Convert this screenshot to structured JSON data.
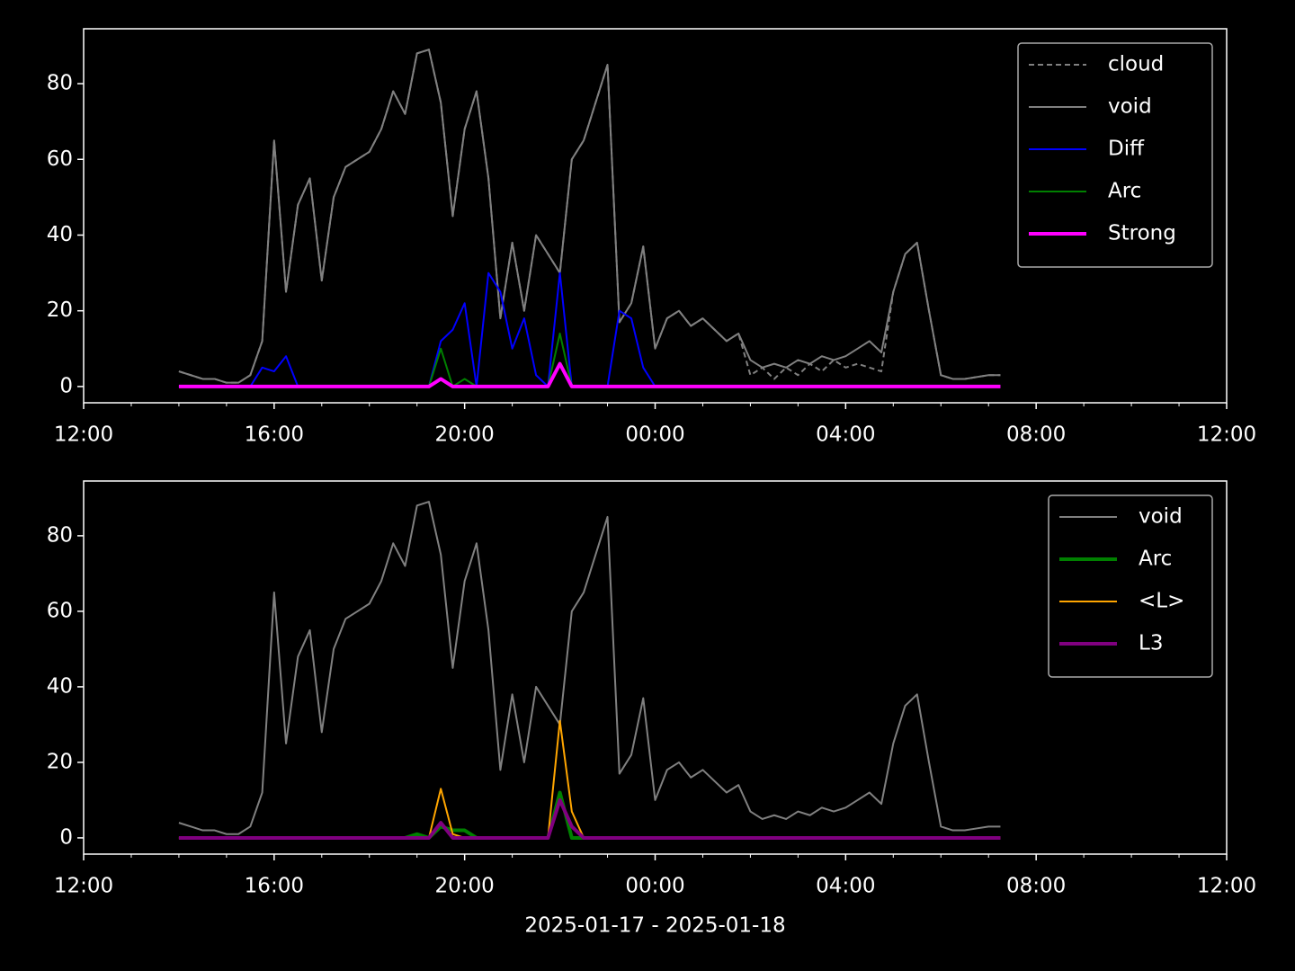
{
  "chart_data": [
    {
      "type": "line",
      "legend": "upper right",
      "x": [
        14,
        14.25,
        14.5,
        14.75,
        15,
        15.25,
        15.5,
        15.75,
        16,
        16.25,
        16.5,
        16.75,
        17,
        17.25,
        17.5,
        17.75,
        18,
        18.25,
        18.5,
        18.75,
        19,
        19.25,
        19.5,
        19.75,
        20,
        20.25,
        20.5,
        20.75,
        21,
        21.25,
        21.5,
        21.75,
        22,
        22.25,
        22.5,
        22.75,
        23,
        23.25,
        23.5,
        23.75,
        24,
        24.25,
        24.5,
        24.75,
        25,
        25.25,
        25.5,
        25.75,
        26,
        26.25,
        26.5,
        26.75,
        27,
        27.25,
        27.5,
        27.75,
        28,
        28.25,
        28.5,
        28.75,
        29,
        29.25,
        29.5,
        29.75,
        30,
        30.25,
        30.5,
        30.75,
        31,
        31.25
      ],
      "series": [
        {
          "name": "cloud",
          "color": "#808080",
          "linestyle": "dashed",
          "width": 2,
          "values": [
            4,
            3,
            2,
            2,
            1,
            1,
            3,
            12,
            65,
            25,
            48,
            55,
            28,
            50,
            58,
            60,
            62,
            68,
            78,
            72,
            88,
            89,
            75,
            45,
            68,
            78,
            55,
            18,
            38,
            20,
            40,
            35,
            30,
            60,
            65,
            75,
            85,
            17,
            22,
            37,
            10,
            18,
            20,
            16,
            18,
            15,
            12,
            14,
            3,
            5,
            2,
            5,
            3,
            6,
            4,
            7,
            5,
            6,
            5,
            4,
            25,
            35,
            38,
            20,
            3,
            2,
            2,
            2.5,
            3,
            3
          ]
        },
        {
          "name": "void",
          "color": "#808080",
          "linestyle": "solid",
          "width": 2,
          "values": [
            4,
            3,
            2,
            2,
            1,
            1,
            3,
            12,
            65,
            25,
            48,
            55,
            28,
            50,
            58,
            60,
            62,
            68,
            78,
            72,
            88,
            89,
            75,
            45,
            68,
            78,
            55,
            18,
            38,
            20,
            40,
            35,
            30,
            60,
            65,
            75,
            85,
            17,
            22,
            37,
            10,
            18,
            20,
            16,
            18,
            15,
            12,
            14,
            7,
            5,
            6,
            5,
            7,
            6,
            8,
            7,
            8,
            10,
            12,
            9,
            25,
            35,
            38,
            20,
            3,
            2,
            2,
            2.5,
            3,
            3
          ]
        },
        {
          "name": "Diff",
          "color": "#0000ff",
          "linestyle": "solid",
          "width": 2,
          "values": [
            0,
            0,
            0,
            0,
            0,
            0,
            0,
            5,
            4,
            8,
            0,
            0,
            0,
            0,
            0,
            0,
            0,
            0,
            0,
            0,
            0,
            0,
            12,
            15,
            22,
            0,
            30,
            25,
            10,
            18,
            3,
            0,
            30,
            0,
            0,
            0,
            0,
            20,
            18,
            5,
            0,
            0,
            0,
            0,
            0,
            0,
            0,
            0,
            0,
            0,
            0,
            0,
            0,
            0,
            0,
            0,
            0,
            0,
            0,
            0,
            0,
            0,
            0,
            0,
            0,
            0,
            0,
            0,
            0,
            0
          ]
        },
        {
          "name": "Arc",
          "color": "#008000",
          "linestyle": "solid",
          "width": 2,
          "values": [
            0,
            0,
            0,
            0,
            0,
            0,
            0,
            0,
            0,
            0,
            0,
            0,
            0,
            0,
            0,
            0,
            0,
            0,
            0,
            0,
            0,
            0,
            10,
            0,
            2,
            0,
            0,
            0,
            0,
            0,
            0,
            0,
            14,
            0,
            0,
            0,
            0,
            0,
            0,
            0,
            0,
            0,
            0,
            0,
            0,
            0,
            0,
            0,
            0,
            0,
            0,
            0,
            0,
            0,
            0,
            0,
            0,
            0,
            0,
            0,
            0,
            0,
            0,
            0,
            0,
            0,
            0,
            0,
            0,
            0
          ]
        },
        {
          "name": "Strong",
          "color": "#ff00ff",
          "linestyle": "solid",
          "width": 4,
          "values": [
            0,
            0,
            0,
            0,
            0,
            0,
            0,
            0,
            0,
            0,
            0,
            0,
            0,
            0,
            0,
            0,
            0,
            0,
            0,
            0,
            0,
            0,
            2,
            0,
            0,
            0,
            0,
            0,
            0,
            0,
            0,
            0,
            6,
            0,
            0,
            0,
            0,
            0,
            0,
            0,
            0,
            0,
            0,
            0,
            0,
            0,
            0,
            0,
            0,
            0,
            0,
            0,
            0,
            0,
            0,
            0,
            0,
            0,
            0,
            0,
            0,
            0,
            0,
            0,
            0,
            0,
            0,
            0,
            0,
            0
          ]
        }
      ],
      "xlim": [
        12,
        36
      ],
      "xticks": [
        {
          "value": 12,
          "label": "12:00"
        },
        {
          "value": 16,
          "label": "16:00"
        },
        {
          "value": 20,
          "label": "20:00"
        },
        {
          "value": 24,
          "label": "00:00"
        },
        {
          "value": 28,
          "label": "04:00"
        },
        {
          "value": 32,
          "label": "08:00"
        },
        {
          "value": 36,
          "label": "12:00"
        }
      ],
      "xminorticks": [
        13,
        14,
        15,
        17,
        18,
        19,
        21,
        22,
        23,
        25,
        26,
        27,
        29,
        30,
        31,
        33,
        34,
        35
      ],
      "ylim": [
        -4.3,
        94.5
      ],
      "yticks": [
        0,
        20,
        40,
        60,
        80
      ]
    },
    {
      "type": "line",
      "legend": "upper right",
      "xlabel": "2025-01-17 - 2025-01-18",
      "x": [
        14,
        14.25,
        14.5,
        14.75,
        15,
        15.25,
        15.5,
        15.75,
        16,
        16.25,
        16.5,
        16.75,
        17,
        17.25,
        17.5,
        17.75,
        18,
        18.25,
        18.5,
        18.75,
        19,
        19.25,
        19.5,
        19.75,
        20,
        20.25,
        20.5,
        20.75,
        21,
        21.25,
        21.5,
        21.75,
        22,
        22.25,
        22.5,
        22.75,
        23,
        23.25,
        23.5,
        23.75,
        24,
        24.25,
        24.5,
        24.75,
        25,
        25.25,
        25.5,
        25.75,
        26,
        26.25,
        26.5,
        26.75,
        27,
        27.25,
        27.5,
        27.75,
        28,
        28.25,
        28.5,
        28.75,
        29,
        29.25,
        29.5,
        29.75,
        30,
        30.25,
        30.5,
        30.75,
        31,
        31.25
      ],
      "series": [
        {
          "name": "void",
          "color": "#808080",
          "linestyle": "solid",
          "width": 2,
          "values": [
            4,
            3,
            2,
            2,
            1,
            1,
            3,
            12,
            65,
            25,
            48,
            55,
            28,
            50,
            58,
            60,
            62,
            68,
            78,
            72,
            88,
            89,
            75,
            45,
            68,
            78,
            55,
            18,
            38,
            20,
            40,
            35,
            30,
            60,
            65,
            75,
            85,
            17,
            22,
            37,
            10,
            18,
            20,
            16,
            18,
            15,
            12,
            14,
            7,
            5,
            6,
            5,
            7,
            6,
            8,
            7,
            8,
            10,
            12,
            9,
            25,
            35,
            38,
            20,
            3,
            2,
            2,
            2.5,
            3,
            3
          ]
        },
        {
          "name": "Arc",
          "color": "#008000",
          "linestyle": "solid",
          "width": 4,
          "values": [
            0,
            0,
            0,
            0,
            0,
            0,
            0,
            0,
            0,
            0,
            0,
            0,
            0,
            0,
            0,
            0,
            0,
            0,
            0,
            0,
            1,
            0,
            3,
            2,
            2,
            0,
            0,
            0,
            0,
            0,
            0,
            0,
            12,
            0,
            0,
            0,
            0,
            0,
            0,
            0,
            0,
            0,
            0,
            0,
            0,
            0,
            0,
            0,
            0,
            0,
            0,
            0,
            0,
            0,
            0,
            0,
            0,
            0,
            0,
            0,
            0,
            0,
            0,
            0,
            0,
            0,
            0,
            0,
            0,
            0
          ]
        },
        {
          "name": "<L>",
          "color": "#ffa500",
          "linestyle": "solid",
          "width": 2,
          "values": [
            0,
            0,
            0,
            0,
            0,
            0,
            0,
            0,
            0,
            0,
            0,
            0,
            0,
            0,
            0,
            0,
            0,
            0,
            0,
            0,
            0,
            0,
            13,
            1,
            0,
            0,
            0,
            0,
            0,
            0,
            0,
            0,
            31,
            7,
            0,
            0,
            0,
            0,
            0,
            0,
            0,
            0,
            0,
            0,
            0,
            0,
            0,
            0,
            0,
            0,
            0,
            0,
            0,
            0,
            0,
            0,
            0,
            0,
            0,
            0,
            0,
            0,
            0,
            0,
            0,
            0,
            0,
            0,
            0,
            0
          ]
        },
        {
          "name": "L3",
          "color": "#800080",
          "linestyle": "solid",
          "width": 4,
          "values": [
            0,
            0,
            0,
            0,
            0,
            0,
            0,
            0,
            0,
            0,
            0,
            0,
            0,
            0,
            0,
            0,
            0,
            0,
            0,
            0,
            0,
            0,
            4,
            0,
            0,
            0,
            0,
            0,
            0,
            0,
            0,
            0,
            10,
            3,
            0,
            0,
            0,
            0,
            0,
            0,
            0,
            0,
            0,
            0,
            0,
            0,
            0,
            0,
            0,
            0,
            0,
            0,
            0,
            0,
            0,
            0,
            0,
            0,
            0,
            0,
            0,
            0,
            0,
            0,
            0,
            0,
            0,
            0,
            0,
            0
          ]
        }
      ],
      "xlim": [
        12,
        36
      ],
      "xticks": [
        {
          "value": 12,
          "label": "12:00"
        },
        {
          "value": 16,
          "label": "16:00"
        },
        {
          "value": 20,
          "label": "20:00"
        },
        {
          "value": 24,
          "label": "00:00"
        },
        {
          "value": 28,
          "label": "04:00"
        },
        {
          "value": 32,
          "label": "08:00"
        },
        {
          "value": 36,
          "label": "12:00"
        }
      ],
      "xminorticks": [
        13,
        14,
        15,
        17,
        18,
        19,
        21,
        22,
        23,
        25,
        26,
        27,
        29,
        30,
        31,
        33,
        34,
        35
      ],
      "ylim": [
        -4.3,
        94.5
      ],
      "yticks": [
        0,
        20,
        40,
        60,
        80
      ]
    }
  ]
}
